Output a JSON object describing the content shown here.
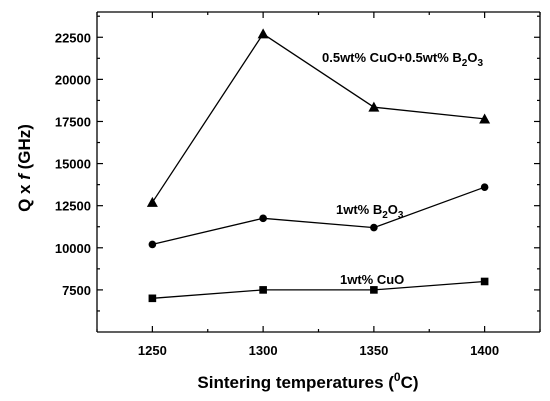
{
  "chart_data": {
    "type": "line",
    "x": [
      1250,
      1300,
      1350,
      1400
    ],
    "xlim": [
      1225,
      1425
    ],
    "ylim": [
      5000,
      24000
    ],
    "xticks": [
      1250,
      1300,
      1350,
      1400
    ],
    "yticks": [
      7500,
      10000,
      12500,
      15000,
      17500,
      20000,
      22500
    ],
    "xlabel": {
      "main": "Sintering temperatures (",
      "sup": "0",
      "tail": "C)"
    },
    "ylabel": {
      "main": "Q x ",
      "italic": "f",
      "tail": " (GHz)"
    },
    "grid": false,
    "legend": "none",
    "series": [
      {
        "name": "0.5wt% CuO+0.5wt% B2O3",
        "label_parts": [
          "0.5wt% CuO+0.5wt% B",
          "2",
          "O",
          "3"
        ],
        "marker": "triangle",
        "values": [
          12700,
          22700,
          18350,
          17650
        ]
      },
      {
        "name": "1wt% B2O3",
        "label_parts": [
          "1wt% B",
          "2",
          "O",
          "3"
        ],
        "marker": "circle",
        "values": [
          10200,
          11750,
          11200,
          13600
        ]
      },
      {
        "name": "1wt% CuO",
        "label_parts": [
          "1wt% CuO"
        ],
        "marker": "square",
        "values": [
          7000,
          7500,
          7500,
          8000
        ]
      }
    ]
  }
}
